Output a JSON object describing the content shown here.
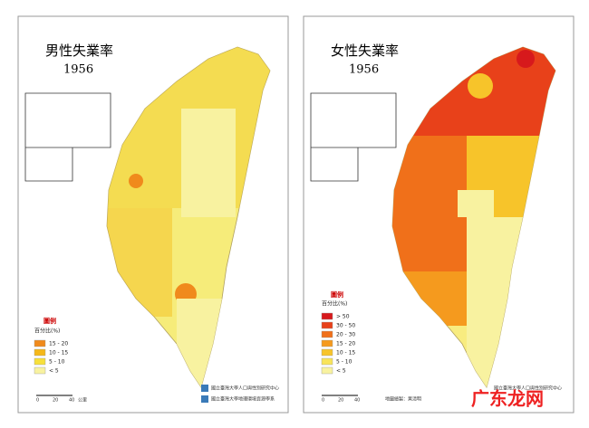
{
  "left": {
    "title": "男性失業率",
    "year": "1956",
    "legend": {
      "heading": "圖例",
      "unit": "百分比(%)",
      "items": [
        {
          "label": "15 - 20",
          "color": "#f08a1c"
        },
        {
          "label": "10 - 15",
          "color": "#f5b81a"
        },
        {
          "label": "5 - 10",
          "color": "#f7e03a"
        },
        {
          "label": "< 5",
          "color": "#f8f2a0"
        }
      ]
    },
    "scale": [
      "0",
      "20",
      "40",
      "公里"
    ],
    "credits": [
      "國立臺灣大學人口與性別研究中心",
      "國立臺灣大學地理環境資源學系"
    ]
  },
  "right": {
    "title": "女性失業率",
    "year": "1956",
    "legend": {
      "heading": "圖例",
      "unit": "百分比(%)",
      "items": [
        {
          "label": "> 50",
          "color": "#d7191c"
        },
        {
          "label": "30 - 50",
          "color": "#e8411a"
        },
        {
          "label": "20 - 30",
          "color": "#f0701a"
        },
        {
          "label": "15 - 20",
          "color": "#f59a1e"
        },
        {
          "label": "10 - 15",
          "color": "#f7c42a"
        },
        {
          "label": "5 - 10",
          "color": "#f8e45a"
        },
        {
          "label": "< 5",
          "color": "#f8f2a0"
        }
      ]
    },
    "scale": [
      "0",
      "20",
      "40"
    ],
    "author": "地圖繪製：黃清明",
    "credits": [
      "國立臺灣大學人口與性別研究中心"
    ]
  },
  "watermark": "广东龙网"
}
